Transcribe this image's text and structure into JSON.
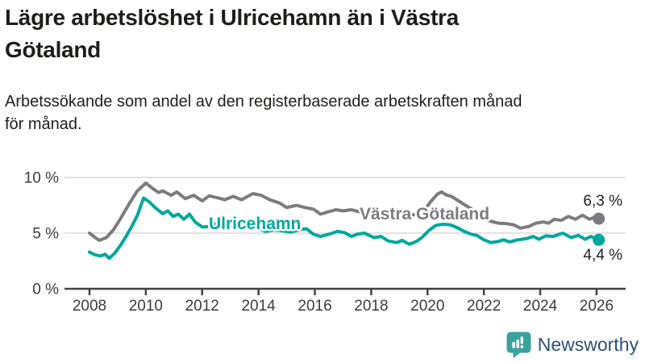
{
  "title": {
    "full": "Lägre arbetslöshet i Ulricehamn än i Västra Götaland",
    "lines": [
      "Lägre arbetslöshet i Ulricehamn än i Västra",
      "Götaland"
    ]
  },
  "subtitle": {
    "full": "Arbetssökande som andel av den registerbaserade arbetskraften månad för månad.",
    "lines": [
      "Arbetssökande som andel av den registerbaserade arbetskraften månad",
      "för månad."
    ]
  },
  "footer": {
    "brand": "Newsworthy"
  },
  "colors": {
    "ulricehamn": "#00a79c",
    "vastra_gotaland": "#7c7c80",
    "grid": "#d8d8d8",
    "axis": "#424242",
    "text": "#1d1d1b",
    "brand_teal": "#3ba39c",
    "brand_navy": "#2e5170"
  },
  "chart_data": {
    "type": "line",
    "title": "Lägre arbetslöshet i Ulricehamn än i Västra Götaland",
    "subtitle": "Arbetssökande som andel av den registerbaserade arbetskraften månad för månad.",
    "unit": "%",
    "xlim": [
      2008,
      2026.2
    ],
    "ylim": [
      0,
      10
    ],
    "grid": "horizontal",
    "legend": "inline-labels",
    "x_ticks": [
      2008,
      2010,
      2012,
      2014,
      2016,
      2018,
      2020,
      2022,
      2024,
      2026
    ],
    "y_ticks": [
      {
        "value": 0,
        "label": "0 %"
      },
      {
        "value": 5,
        "label": "5 %"
      },
      {
        "value": 10,
        "label": "10 %"
      }
    ],
    "series": [
      {
        "name": "Ulricehamn",
        "color": "#00a79c",
        "end_label": "4,4 %",
        "end_value": 4.4,
        "points": [
          [
            2008.0,
            3.3
          ],
          [
            2008.2,
            3.05
          ],
          [
            2008.4,
            2.95
          ],
          [
            2008.55,
            3.1
          ],
          [
            2008.7,
            2.75
          ],
          [
            2008.9,
            3.2
          ],
          [
            2009.1,
            3.9
          ],
          [
            2009.3,
            4.7
          ],
          [
            2009.5,
            5.6
          ],
          [
            2009.7,
            6.6
          ],
          [
            2009.92,
            8.15
          ],
          [
            2010.1,
            7.85
          ],
          [
            2010.35,
            7.25
          ],
          [
            2010.6,
            6.75
          ],
          [
            2010.78,
            7.0
          ],
          [
            2010.97,
            6.5
          ],
          [
            2011.15,
            6.7
          ],
          [
            2011.35,
            6.25
          ],
          [
            2011.55,
            6.7
          ],
          [
            2011.75,
            6.0
          ],
          [
            2012.0,
            5.55
          ],
          [
            2012.3,
            5.6
          ],
          [
            2012.55,
            5.95
          ],
          [
            2012.8,
            5.75
          ],
          [
            2013.1,
            5.85
          ],
          [
            2013.4,
            5.65
          ],
          [
            2013.7,
            5.75
          ],
          [
            2013.95,
            5.5
          ],
          [
            2014.25,
            5.15
          ],
          [
            2014.55,
            5.3
          ],
          [
            2014.85,
            5.2
          ],
          [
            2015.15,
            5.1
          ],
          [
            2015.45,
            5.3
          ],
          [
            2015.7,
            5.4
          ],
          [
            2015.95,
            4.9
          ],
          [
            2016.2,
            4.7
          ],
          [
            2016.5,
            4.9
          ],
          [
            2016.8,
            5.15
          ],
          [
            2017.05,
            5.05
          ],
          [
            2017.3,
            4.7
          ],
          [
            2017.5,
            4.9
          ],
          [
            2017.75,
            5.0
          ],
          [
            2018.1,
            4.6
          ],
          [
            2018.35,
            4.7
          ],
          [
            2018.6,
            4.3
          ],
          [
            2018.9,
            4.15
          ],
          [
            2019.1,
            4.35
          ],
          [
            2019.35,
            4.0
          ],
          [
            2019.6,
            4.25
          ],
          [
            2019.8,
            4.6
          ],
          [
            2020.05,
            5.25
          ],
          [
            2020.3,
            5.7
          ],
          [
            2020.55,
            5.8
          ],
          [
            2020.8,
            5.75
          ],
          [
            2021.05,
            5.5
          ],
          [
            2021.3,
            5.15
          ],
          [
            2021.55,
            4.9
          ],
          [
            2021.75,
            4.8
          ],
          [
            2022.0,
            4.4
          ],
          [
            2022.25,
            4.15
          ],
          [
            2022.5,
            4.25
          ],
          [
            2022.7,
            4.4
          ],
          [
            2022.9,
            4.2
          ],
          [
            2023.2,
            4.4
          ],
          [
            2023.5,
            4.5
          ],
          [
            2023.75,
            4.7
          ],
          [
            2023.95,
            4.45
          ],
          [
            2024.2,
            4.75
          ],
          [
            2024.45,
            4.7
          ],
          [
            2024.8,
            5.0
          ],
          [
            2025.1,
            4.6
          ],
          [
            2025.35,
            4.8
          ],
          [
            2025.6,
            4.45
          ],
          [
            2025.8,
            4.7
          ],
          [
            2026.08,
            4.4
          ]
        ]
      },
      {
        "name": "Västra Götaland",
        "color": "#7c7c80",
        "end_label": "6,3 %",
        "end_value": 6.3,
        "points": [
          [
            2008.0,
            5.0
          ],
          [
            2008.2,
            4.6
          ],
          [
            2008.35,
            4.35
          ],
          [
            2008.6,
            4.6
          ],
          [
            2008.85,
            5.3
          ],
          [
            2009.1,
            6.3
          ],
          [
            2009.4,
            7.6
          ],
          [
            2009.7,
            8.8
          ],
          [
            2010.0,
            9.5
          ],
          [
            2010.25,
            9.0
          ],
          [
            2010.45,
            8.65
          ],
          [
            2010.6,
            8.8
          ],
          [
            2010.9,
            8.4
          ],
          [
            2011.1,
            8.7
          ],
          [
            2011.4,
            8.1
          ],
          [
            2011.7,
            8.4
          ],
          [
            2012.0,
            7.9
          ],
          [
            2012.25,
            8.35
          ],
          [
            2012.5,
            8.2
          ],
          [
            2012.8,
            8.0
          ],
          [
            2013.1,
            8.3
          ],
          [
            2013.4,
            8.0
          ],
          [
            2013.8,
            8.55
          ],
          [
            2014.1,
            8.4
          ],
          [
            2014.4,
            8.0
          ],
          [
            2014.75,
            7.7
          ],
          [
            2015.0,
            7.3
          ],
          [
            2015.35,
            7.5
          ],
          [
            2015.65,
            7.3
          ],
          [
            2015.95,
            7.15
          ],
          [
            2016.2,
            6.7
          ],
          [
            2016.45,
            6.9
          ],
          [
            2016.75,
            7.1
          ],
          [
            2017.0,
            7.0
          ],
          [
            2017.3,
            7.1
          ],
          [
            2017.6,
            6.9
          ],
          [
            2018.0,
            6.8
          ],
          [
            2018.4,
            6.6
          ],
          [
            2018.8,
            6.5
          ],
          [
            2019.2,
            6.5
          ],
          [
            2019.6,
            6.7
          ],
          [
            2019.9,
            7.1
          ],
          [
            2020.1,
            7.8
          ],
          [
            2020.35,
            8.5
          ],
          [
            2020.5,
            8.7
          ],
          [
            2020.65,
            8.45
          ],
          [
            2020.85,
            8.3
          ],
          [
            2021.1,
            7.9
          ],
          [
            2021.35,
            7.5
          ],
          [
            2021.6,
            7.1
          ],
          [
            2021.9,
            6.5
          ],
          [
            2022.2,
            6.1
          ],
          [
            2022.5,
            5.9
          ],
          [
            2022.8,
            5.85
          ],
          [
            2023.05,
            5.75
          ],
          [
            2023.3,
            5.45
          ],
          [
            2023.6,
            5.6
          ],
          [
            2023.85,
            5.9
          ],
          [
            2024.1,
            6.0
          ],
          [
            2024.3,
            5.9
          ],
          [
            2024.5,
            6.25
          ],
          [
            2024.75,
            6.15
          ],
          [
            2025.0,
            6.5
          ],
          [
            2025.25,
            6.25
          ],
          [
            2025.5,
            6.6
          ],
          [
            2025.75,
            6.25
          ],
          [
            2025.95,
            6.45
          ],
          [
            2026.08,
            6.3
          ]
        ]
      }
    ]
  }
}
